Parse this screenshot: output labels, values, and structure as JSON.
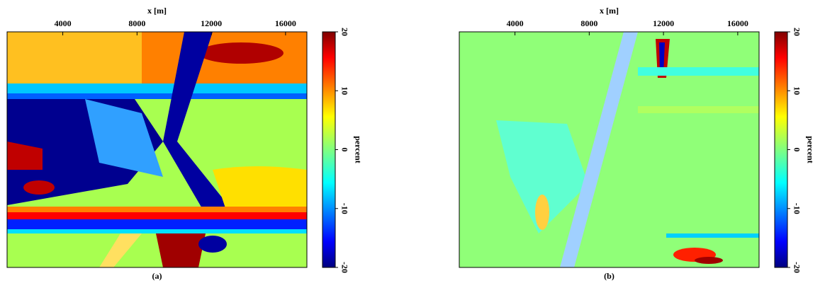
{
  "chart_data": [
    {
      "type": "heatmap",
      "caption": "(a)",
      "xlabel": "x [m]",
      "xlim": [
        1000,
        17150
      ],
      "xticks": [
        4000,
        8000,
        12000,
        16000
      ],
      "colorbar_label": "percent",
      "clim": [
        -20,
        20
      ],
      "cticks": [
        -20,
        -10,
        0,
        10,
        20
      ],
      "colormap": "jet"
    },
    {
      "type": "heatmap",
      "caption": "(b)",
      "xlabel": "x [m]",
      "xlim": [
        1000,
        17150
      ],
      "xticks": [
        4000,
        8000,
        12000,
        16000
      ],
      "colorbar_label": "percent",
      "clim": [
        -20,
        20
      ],
      "cticks": [
        -20,
        -10,
        0,
        10,
        20
      ],
      "colormap": "jet"
    }
  ]
}
